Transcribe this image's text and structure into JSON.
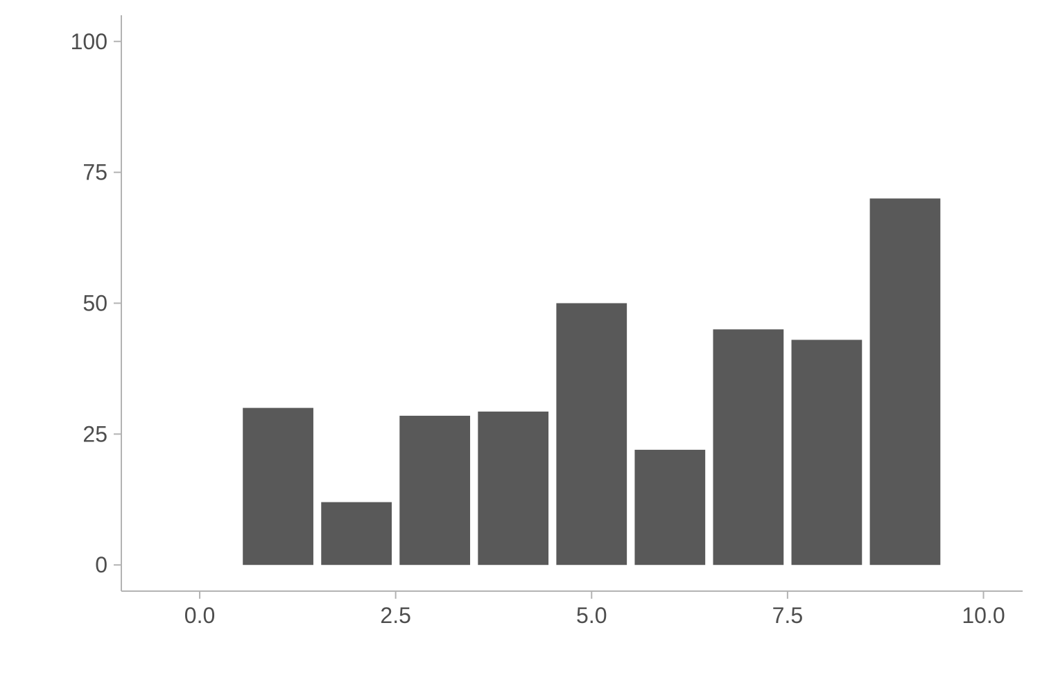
{
  "chart_data": {
    "type": "bar",
    "title": "",
    "xlabel": "",
    "ylabel": "",
    "x": [
      1,
      2,
      3,
      4,
      5,
      6,
      7,
      8,
      9
    ],
    "values": [
      30,
      12,
      28.5,
      29.3,
      50,
      22,
      45,
      43,
      70
    ],
    "bar_width": 0.9,
    "xlim": [
      -1,
      10.5
    ],
    "ylim": [
      -5,
      105
    ],
    "xticks": [
      0,
      2.5,
      5,
      7.5,
      10
    ],
    "xtick_labels": [
      "0.0",
      "2.5",
      "5.0",
      "7.5",
      "10.0"
    ],
    "yticks": [
      0,
      25,
      50,
      75,
      100
    ],
    "ytick_labels": [
      "0",
      "25",
      "50",
      "75",
      "100"
    ],
    "grid": false,
    "legend": "none",
    "colors": {
      "bar": "#595959",
      "axis": "#b3b3b3",
      "text": "#4d4d4d"
    }
  }
}
